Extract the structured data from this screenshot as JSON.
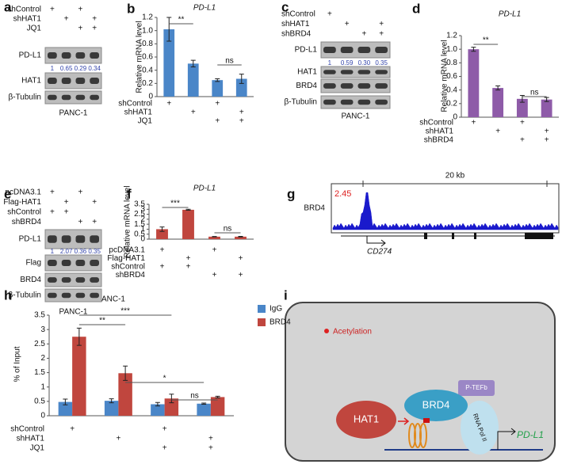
{
  "chart_data": [
    {
      "type": "bar",
      "panel": "b",
      "title": "PD-L1",
      "y_label": "Relative mRNA level",
      "color": "#4a86c8",
      "values": [
        1.02,
        0.5,
        0.25,
        0.27
      ],
      "errors": [
        0.18,
        0.05,
        0.02,
        0.07
      ],
      "ylim": [
        0,
        1.2
      ],
      "yticks": [
        0,
        0.2,
        0.4,
        0.6,
        0.8,
        {
          "value": 1,
          "label": "1.0"
        },
        1.2
      ],
      "conditions": [
        {
          "name": "shControl",
          "marks": [
            "+",
            null,
            "+",
            null
          ]
        },
        {
          "name": "shHAT1",
          "marks": [
            null,
            "+",
            null,
            "+"
          ]
        },
        {
          "name": "JQ1",
          "marks": [
            null,
            null,
            "+",
            "+"
          ]
        }
      ],
      "annotations": [
        "**",
        "ns"
      ]
    },
    {
      "type": "bar",
      "panel": "d",
      "title": "PD-L1",
      "y_label": "Relative mRNA level",
      "color": "#8e5ba8",
      "values": [
        1.0,
        0.43,
        0.27,
        0.26
      ],
      "errors": [
        0.03,
        0.03,
        0.05,
        0.03
      ],
      "ylim": [
        0,
        1.2
      ],
      "yticks": [
        0,
        0.2,
        0.4,
        0.6,
        0.8,
        {
          "value": 1,
          "label": "1.0"
        },
        1.2
      ],
      "conditions": [
        {
          "name": "shControl",
          "marks": [
            "+",
            null,
            "+",
            null
          ]
        },
        {
          "name": "shHAT1",
          "marks": [
            null,
            "+",
            null,
            "+"
          ]
        },
        {
          "name": "shBRD4",
          "marks": [
            null,
            null,
            "+",
            "+"
          ]
        }
      ],
      "annotations": [
        "**",
        "ns"
      ]
    },
    {
      "type": "bar",
      "panel": "f",
      "title": "PD-L1",
      "y_label": "Relative mRNA level",
      "color": "#c0463e",
      "values": [
        1.0,
        2.95,
        0.25,
        0.25
      ],
      "errors": [
        0.22,
        0.05,
        0.02,
        0.03
      ],
      "ylim": [
        0,
        3.5
      ],
      "yticks": [
        0,
        0.5,
        1,
        1.5,
        2,
        2.5,
        3,
        3.5
      ],
      "conditions": [
        {
          "name": "pcDNA3.1",
          "marks": [
            "+",
            null,
            "+",
            null
          ]
        },
        {
          "name": "Flag-HAT1",
          "marks": [
            null,
            "+",
            null,
            "+"
          ]
        },
        {
          "name": "shControl",
          "marks": [
            "+",
            "+",
            null,
            null
          ]
        },
        {
          "name": "shBRD4",
          "marks": [
            null,
            null,
            "+",
            "+"
          ]
        }
      ],
      "annotations": [
        "***",
        "ns"
      ]
    },
    {
      "type": "bar",
      "panel": "h",
      "title": "PANC-1",
      "y_label": "% of Input",
      "series": [
        {
          "name": "IgG",
          "color": "#4a86c8",
          "values": [
            0.48,
            0.52,
            0.4,
            0.42
          ],
          "errors": [
            0.1,
            0.07,
            0.06,
            0.02
          ]
        },
        {
          "name": "BRD4",
          "color": "#c0463e",
          "values": [
            2.75,
            1.48,
            0.6,
            0.65
          ],
          "errors": [
            0.3,
            0.25,
            0.15,
            0.03
          ]
        }
      ],
      "ylim": [
        0,
        3.5
      ],
      "yticks": [
        0,
        0.5,
        1,
        1.5,
        2,
        2.5,
        3,
        3.5
      ],
      "conditions": [
        {
          "name": "shControl",
          "marks": [
            "+",
            null,
            "+",
            null
          ]
        },
        {
          "name": "shHAT1",
          "marks": [
            null,
            "+",
            null,
            "+"
          ]
        },
        {
          "name": "JQ1",
          "marks": [
            null,
            null,
            "+",
            "+"
          ]
        }
      ],
      "annotations": [
        "***",
        "**",
        "*",
        "ns"
      ]
    }
  ],
  "blots": [
    {
      "panel": "a",
      "conditions": [
        {
          "name": "shControl",
          "marks": [
            "+",
            null,
            "+",
            null
          ]
        },
        {
          "name": "shHAT1",
          "marks": [
            null,
            "+",
            null,
            "+"
          ]
        },
        {
          "name": "JQ1",
          "marks": [
            null,
            null,
            "+",
            "+"
          ]
        }
      ],
      "bands": [
        {
          "label": "PD-L1",
          "quant": [
            "1",
            "0.65",
            "0.29",
            "0.34"
          ]
        },
        {
          "label": "HAT1"
        },
        {
          "label": "β-Tubulin"
        }
      ],
      "cell_line": "PANC-1"
    },
    {
      "panel": "c",
      "conditions": [
        {
          "name": "shControl",
          "marks": [
            "+",
            null,
            null,
            null
          ]
        },
        {
          "name": "shHAT1",
          "marks": [
            null,
            "+",
            null,
            "+"
          ]
        },
        {
          "name": "shBRD4",
          "marks": [
            null,
            null,
            "+",
            "+"
          ]
        }
      ],
      "bands": [
        {
          "label": "PD-L1",
          "quant": [
            "1",
            "0.59",
            "0.30",
            "0.35"
          ]
        },
        {
          "label": "HAT1"
        },
        {
          "label": "BRD4"
        },
        {
          "label": "β-Tubulin"
        }
      ],
      "cell_line": "PANC-1"
    },
    {
      "panel": "e",
      "conditions": [
        {
          "name": "pcDNA3.1",
          "marks": [
            "+",
            null,
            "+",
            null
          ]
        },
        {
          "name": "Flag-HAT1",
          "marks": [
            null,
            "+",
            null,
            "+"
          ]
        },
        {
          "name": "shControl",
          "marks": [
            "+",
            "+",
            null,
            null
          ]
        },
        {
          "name": "shBRD4",
          "marks": [
            null,
            null,
            "+",
            "+"
          ]
        }
      ],
      "bands": [
        {
          "label": "PD-L1",
          "quant": [
            "1",
            "2.07",
            "0.36",
            "0.35"
          ]
        },
        {
          "label": "Flag"
        },
        {
          "label": "BRD4"
        },
        {
          "label": "β-Tubulin"
        }
      ],
      "cell_line": "PANC-1"
    }
  ],
  "track": {
    "panel": "g",
    "scale": "20 kb",
    "max": "2.45",
    "name": "BRD4",
    "gene": "CD274"
  },
  "diagram": {
    "panel": "i",
    "legend": "Acetylation",
    "complex": "P-TEFb",
    "reader": "BRD4",
    "writer": "HAT1",
    "polymerase": "RNA Pol II",
    "gene": "PD-L1"
  }
}
